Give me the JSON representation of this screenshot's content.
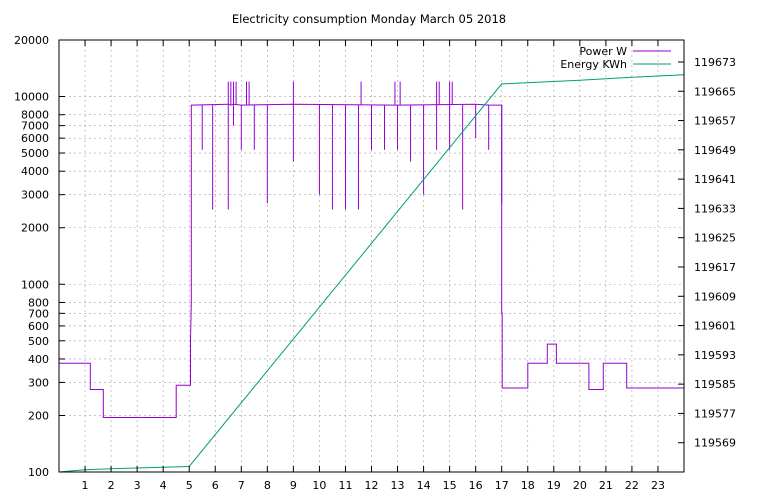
{
  "chart_data": {
    "type": "line",
    "title": "Electricity consumption Monday March 05 2018",
    "xlabel": "",
    "ylabel": "",
    "x_range": [
      0,
      24
    ],
    "x_ticks": [
      1,
      2,
      3,
      4,
      5,
      6,
      7,
      8,
      9,
      10,
      11,
      12,
      13,
      14,
      15,
      16,
      17,
      18,
      19,
      20,
      21,
      22,
      23
    ],
    "x_tick_labels": [
      "1",
      "2",
      "3",
      "4",
      "5",
      "6",
      "7",
      "8",
      "9",
      "10",
      "11",
      "12",
      "13",
      "14",
      "15",
      "16",
      "17",
      "18",
      "19",
      "20",
      "21",
      "22",
      "23"
    ],
    "y_scale": "log",
    "y_range": [
      100,
      20000
    ],
    "y_ticks": [
      100,
      200,
      300,
      400,
      500,
      600,
      700,
      800,
      1000,
      2000,
      3000,
      4000,
      5000,
      6000,
      7000,
      8000,
      10000,
      20000
    ],
    "y_tick_labels": [
      "100",
      "200",
      "300",
      "400",
      "500",
      "600",
      "700",
      "800",
      "1000",
      "2000",
      "3000",
      "4000",
      "5000",
      "6000",
      "7000",
      "8000",
      "10000",
      "20000"
    ],
    "y2_range": [
      119561,
      119679
    ],
    "y2_ticks": [
      119569,
      119577,
      119585,
      119593,
      119601,
      119609,
      119617,
      119625,
      119633,
      119641,
      119649,
      119657,
      119665,
      119673
    ],
    "y2_tick_labels": [
      "119569",
      "119577",
      "119585",
      "119593",
      "119601",
      "119609",
      "119617",
      "119625",
      "119633",
      "119641",
      "119649",
      "119657",
      "119665",
      "119673"
    ],
    "grid": true,
    "legend_position": "top-right",
    "colors": {
      "power": "#9400D3",
      "energy": "#009E73",
      "grid": "#a0a0a0",
      "axis": "#000000"
    },
    "series": [
      {
        "name": "Power W",
        "axis": "left",
        "x": [
          0,
          1.2,
          1.2,
          1.7,
          1.7,
          4.5,
          4.5,
          5.05,
          5.05,
          5.08,
          5.08,
          6.5,
          6.6,
          6.7,
          7.0,
          9.0,
          13.0,
          16.0,
          16.5,
          17.0,
          17.0,
          17.02,
          17.02,
          18.0,
          18.0,
          18.75,
          18.75,
          19.1,
          19.1,
          20.35,
          20.35,
          20.9,
          20.9,
          21.8,
          21.8,
          24
        ],
        "y": [
          380,
          380,
          275,
          275,
          195,
          195,
          290,
          290,
          500,
          800,
          9000,
          9100,
          9000,
          9100,
          9000,
          9100,
          9000,
          9100,
          9000,
          9000,
          700,
          700,
          280,
          280,
          380,
          380,
          480,
          480,
          380,
          380,
          275,
          275,
          380,
          380,
          280,
          280
        ]
      },
      {
        "name": "Energy KWh",
        "axis": "right",
        "x": [
          0,
          1,
          2,
          3,
          4,
          5,
          17,
          20,
          22,
          24
        ],
        "y": [
          119561,
          119561.6,
          119561.9,
          119562.1,
          119562.3,
          119562.5,
          119667,
          119668,
          119668.8,
          119669.5
        ]
      }
    ],
    "spikes": {
      "x": [
        5.5,
        5.9,
        6.5,
        6.7,
        7.0,
        7.5,
        8.0,
        9.0,
        10.0,
        10.5,
        11.0,
        11.5,
        12.0,
        12.5,
        13.0,
        13.5,
        14.0,
        14.5,
        15.0,
        15.5,
        16.0,
        16.5,
        17.0
      ],
      "y": [
        5200,
        2500,
        2500,
        7000,
        5200,
        5200,
        2700,
        4500,
        3000,
        2500,
        2500,
        2500,
        5200,
        5200,
        5200,
        4500,
        3000,
        5200,
        5200,
        2500,
        6000,
        5200,
        2700
      ]
    },
    "bursts": {
      "x": [
        6.5,
        6.6,
        6.7,
        6.8,
        7.2,
        7.3,
        9.0,
        11.6,
        12.9,
        13.1,
        14.5,
        14.6,
        15.0,
        15.1
      ],
      "y": [
        12000,
        12000,
        12000,
        12000,
        12000,
        12000,
        12000,
        12000,
        12000,
        12000,
        12000,
        12000,
        12000,
        12000
      ]
    }
  }
}
